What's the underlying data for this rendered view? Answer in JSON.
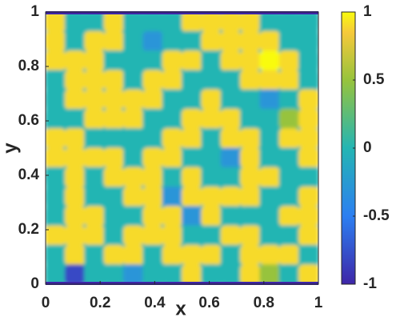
{
  "chart_data": {
    "type": "contour",
    "xlabel": "x",
    "ylabel": "y",
    "xlim": [
      0,
      1
    ],
    "ylim": [
      0,
      1
    ],
    "xticks": [
      0,
      0.2,
      0.4,
      0.6,
      0.8,
      1
    ],
    "yticks": [
      0,
      0.2,
      0.4,
      0.6,
      0.8,
      1
    ],
    "clim": [
      -1,
      1
    ],
    "cticks": [
      -1,
      -0.5,
      0,
      0.5,
      1
    ],
    "colormap": [
      [
        -1,
        "#3e26a8"
      ],
      [
        -0.5,
        "#2c7ff1"
      ],
      [
        0,
        "#24b5b3"
      ],
      [
        0.5,
        "#97c33c"
      ],
      [
        0.85,
        "#f6c93b"
      ],
      [
        1,
        "#f9fb0e"
      ]
    ],
    "z": [
      [
        0.9,
        0,
        0,
        0.9,
        0,
        0,
        0,
        0.9,
        0.9,
        0.9,
        0.9,
        0,
        0,
        0
      ],
      [
        0.9,
        0,
        0.9,
        0.9,
        0,
        -0.3,
        0,
        0,
        0.9,
        0.9,
        0.9,
        0.9,
        0,
        0
      ],
      [
        0.9,
        0.9,
        0.9,
        0,
        0,
        0,
        0.9,
        0.9,
        0,
        0.9,
        0.9,
        1,
        0.9,
        0
      ],
      [
        0,
        0.9,
        0.9,
        0.9,
        0,
        0.9,
        0.9,
        0,
        0,
        0,
        0.9,
        0.9,
        0.9,
        0
      ],
      [
        0,
        0.9,
        0.9,
        0.9,
        0.9,
        0.9,
        0,
        0,
        0.9,
        0,
        0,
        -0.3,
        0,
        0.9
      ],
      [
        0,
        0,
        0.9,
        0.9,
        0.9,
        0,
        0,
        0.9,
        0.9,
        0.9,
        0,
        0,
        0.5,
        0.9
      ],
      [
        0.9,
        0.9,
        0,
        0,
        0,
        0,
        0.9,
        0.9,
        0,
        0.9,
        0.9,
        0,
        0.9,
        0.9
      ],
      [
        0.9,
        0.9,
        0.9,
        0.9,
        0,
        0.9,
        0.9,
        0,
        0,
        -0.3,
        0.9,
        0,
        0,
        0.9
      ],
      [
        0,
        0.9,
        0,
        0.9,
        0.9,
        0.9,
        0,
        0.9,
        0,
        0,
        0.9,
        0.9,
        0,
        0
      ],
      [
        0,
        0.9,
        0,
        0,
        0.9,
        0.9,
        -0.3,
        0.9,
        0.9,
        0.9,
        0.9,
        0,
        0,
        0.9
      ],
      [
        0,
        0.9,
        0.9,
        0,
        0,
        0.9,
        0.9,
        -0.3,
        0.9,
        0,
        0,
        0,
        0.9,
        0.9
      ],
      [
        0.9,
        0.9,
        0.9,
        0,
        0.9,
        0.9,
        0.9,
        0,
        0,
        0.9,
        0.9,
        0,
        0,
        0.9
      ],
      [
        0,
        0.9,
        0,
        0.9,
        0.9,
        0,
        0.9,
        0.9,
        0.9,
        0,
        0.9,
        0.9,
        0.9,
        0
      ],
      [
        0,
        -0.8,
        0,
        0,
        -0.3,
        0,
        0,
        0.9,
        0,
        0,
        0.9,
        0.5,
        0,
        0.9
      ]
    ]
  }
}
